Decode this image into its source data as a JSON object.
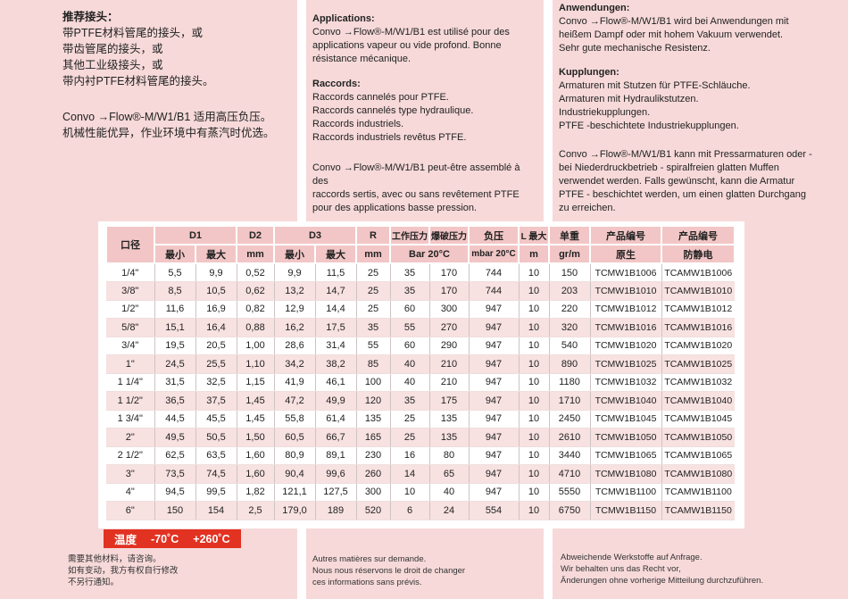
{
  "columns": {
    "chinese": {
      "heading": "推荐接头：",
      "body": "带PTFE材料管尾的接头，或\n带齿管尾的接头，或\n其他工业级接头，或\n带内衬PTFE材料管尾的接头。",
      "para2": "Convo →Flow®-M/W1/B1 适用高压负压。\n机械性能优异，作业环境中有蒸汽时优选。"
    },
    "french": {
      "heading1": "Applications:",
      "para1": "Convo →Flow®-M/W1/B1 est utilisé pour des\napplications vapeur ou vide profond. Bonne\nrésistance mécanique.",
      "heading2": "Raccords:",
      "para2": "Raccords cannelés pour PTFE.\nRaccords cannelés type hydraulique.\nRaccords industriels.\nRaccords industriels revêtus PTFE.",
      "para3": "Convo →Flow®-M/W1/B1 peut-être assemblé à des\nraccords sertis, avec ou sans revêtement PTFE\npour des applications basse pression."
    },
    "german": {
      "heading1": "Anwendungen:",
      "para1": "Convo →Flow®-M/W1/B1 wird bei Anwendungen mit\nheißem Dampf oder mit hohem Vakuum verwendet.\nSehr gute mechanische Resistenz.",
      "heading2": "Kupplungen:",
      "para2": "Armaturen mit Stutzen für PTFE-Schläuche.\nArmaturen mit Hydraulikstutzen.\nIndustriekupplungen.\nPTFE -beschichtete Industriekupplungen.",
      "para3": "Convo →Flow®-M/W1/B1 kann mit Pressarmaturen oder -\nbei Niederdruckbetrieb - spiralfreien glatten Muffen\nverwendet werden. Falls gewünscht, kann die Armatur\nPTFE - beschichtet werden, um einen glatten Durchgang\nzu erreichen."
    }
  },
  "table": {
    "header": {
      "col_diameter": "口径",
      "d1": "D1",
      "d2": "D2",
      "d3": "D3",
      "r": "R",
      "min": "最小",
      "max": "最大",
      "mm": "mm",
      "min2": "最小",
      "max2": "最大",
      "mm2": "mm",
      "working_pressure": "工作压力",
      "burst_pressure": "爆破压力",
      "bar": "Bar 20°C",
      "vacuum": "负压",
      "mbar": "mbar 20°C",
      "l_max": "L 最大",
      "m": "m",
      "unit_weight": "单重",
      "gr_m": "gr/m",
      "product_code": "产品编号",
      "product_code2": "产品编号",
      "original": "原生",
      "antistatic": "防静电"
    },
    "rows": [
      [
        "1/4\"",
        "5,5",
        "9,9",
        "0,52",
        "9,9",
        "11,5",
        "25",
        "35",
        "170",
        "744",
        "10",
        "150",
        "TCMW1B1006",
        "TCAMW1B1006"
      ],
      [
        "3/8\"",
        "8,5",
        "10,5",
        "0,62",
        "13,2",
        "14,7",
        "25",
        "35",
        "170",
        "744",
        "10",
        "203",
        "TCMW1B1010",
        "TCAMW1B1010"
      ],
      [
        "1/2\"",
        "11,6",
        "16,9",
        "0,82",
        "12,9",
        "14,4",
        "25",
        "60",
        "300",
        "947",
        "10",
        "220",
        "TCMW1B1012",
        "TCAMW1B1012"
      ],
      [
        "5/8\"",
        "15,1",
        "16,4",
        "0,88",
        "16,2",
        "17,5",
        "35",
        "55",
        "270",
        "947",
        "10",
        "320",
        "TCMW1B1016",
        "TCAMW1B1016"
      ],
      [
        "3/4\"",
        "19,5",
        "20,5",
        "1,00",
        "28,6",
        "31,4",
        "55",
        "60",
        "290",
        "947",
        "10",
        "540",
        "TCMW1B1020",
        "TCAMW1B1020"
      ],
      [
        "1\"",
        "24,5",
        "25,5",
        "1,10",
        "34,2",
        "38,2",
        "85",
        "40",
        "210",
        "947",
        "10",
        "890",
        "TCMW1B1025",
        "TCAMW1B1025"
      ],
      [
        "1 1/4\"",
        "31,5",
        "32,5",
        "1,15",
        "41,9",
        "46,1",
        "100",
        "40",
        "210",
        "947",
        "10",
        "1180",
        "TCMW1B1032",
        "TCAMW1B1032"
      ],
      [
        "1 1/2\"",
        "36,5",
        "37,5",
        "1,45",
        "47,2",
        "49,9",
        "120",
        "35",
        "175",
        "947",
        "10",
        "1710",
        "TCMW1B1040",
        "TCAMW1B1040"
      ],
      [
        "1 3/4\"",
        "44,5",
        "45,5",
        "1,45",
        "55,8",
        "61,4",
        "135",
        "25",
        "135",
        "947",
        "10",
        "2450",
        "TCMW1B1045",
        "TCAMW1B1045"
      ],
      [
        "2\"",
        "49,5",
        "50,5",
        "1,50",
        "60,5",
        "66,7",
        "165",
        "25",
        "135",
        "947",
        "10",
        "2610",
        "TCMW1B1050",
        "TCAMW1B1050"
      ],
      [
        "2 1/2\"",
        "62,5",
        "63,5",
        "1,60",
        "80,9",
        "89,1",
        "230",
        "16",
        "80",
        "947",
        "10",
        "3440",
        "TCMW1B1065",
        "TCAMW1B1065"
      ],
      [
        "3\"",
        "73,5",
        "74,5",
        "1,60",
        "90,4",
        "99,6",
        "260",
        "14",
        "65",
        "947",
        "10",
        "4710",
        "TCMW1B1080",
        "TCAMW1B1080"
      ],
      [
        "4\"",
        "94,5",
        "99,5",
        "1,82",
        "121,1",
        "127,5",
        "300",
        "10",
        "40",
        "947",
        "10",
        "5550",
        "TCMW1B1100",
        "TCAMW1B1100"
      ],
      [
        "6\"",
        "150",
        "154",
        "2,5",
        "179,0",
        "189",
        "520",
        "6",
        "24",
        "554",
        "10",
        "6750",
        "TCMW1B1150",
        "TCAMW1B1150"
      ]
    ]
  },
  "temperature": {
    "label": "温度",
    "min": "-70˚C",
    "max": "+260˚C"
  },
  "notes": {
    "chinese": "需要其他材料，请咨询。\n如有变动，我方有权自行修改\n不另行通知。",
    "french": "Autres matières sur demande.\nNous nous réservons le droit de changer\nces informations sans prévis.",
    "german": "Abweichende Werkstoffe auf Anfrage.\nWir behalten uns das Recht vor,\nÄnderungen ohne vorherige Mitteilung durchzuführen."
  },
  "colors": {
    "panel_pink": "#f7d9d9",
    "header_pink": "#f2c6c6",
    "stripe_pink": "#f8e1e1",
    "band_red": "#e23222"
  }
}
